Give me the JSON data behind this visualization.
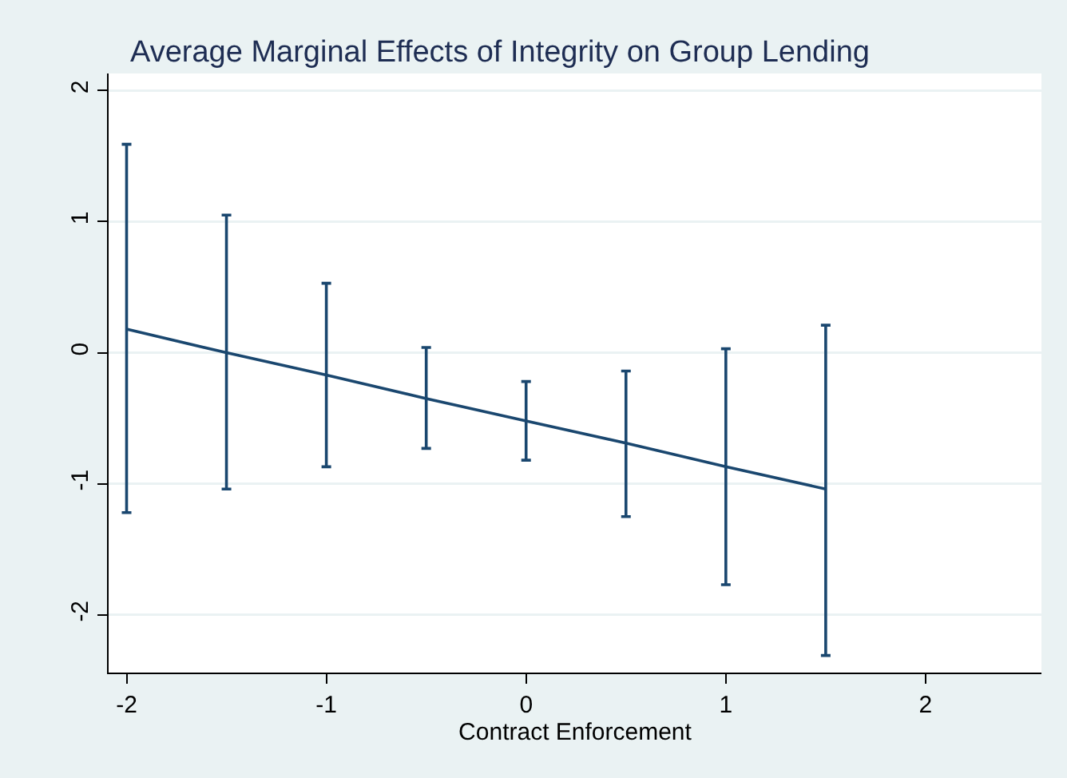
{
  "chart_data": {
    "type": "line",
    "title": "Average Marginal Effects of Integrity on Group Lending",
    "xlabel": "Contract Enforcement",
    "x": [
      -2,
      -1.5,
      -1,
      -0.5,
      0,
      0.5,
      1,
      1.5
    ],
    "values": [
      0.18,
      0.0,
      -0.17,
      -0.35,
      -0.52,
      -0.69,
      -0.87,
      -1.04
    ],
    "errors": [
      [
        -1.22,
        1.59
      ],
      [
        -1.04,
        1.05
      ],
      [
        -0.87,
        0.53
      ],
      [
        -0.73,
        0.04
      ],
      [
        -0.82,
        -0.22
      ],
      [
        -1.25,
        -0.14
      ],
      [
        -1.77,
        0.03
      ],
      [
        -2.31,
        0.21
      ]
    ],
    "color": "#1a476f",
    "marker": "none",
    "line_style": "solid",
    "xlim": [
      -2.09,
      2.58
    ],
    "xticks": [
      -2,
      -1,
      0,
      1,
      2
    ],
    "ylim": [
      -2.44,
      2.13
    ],
    "yticks": [
      -2,
      -1,
      0,
      1,
      2
    ],
    "grid": "y"
  }
}
